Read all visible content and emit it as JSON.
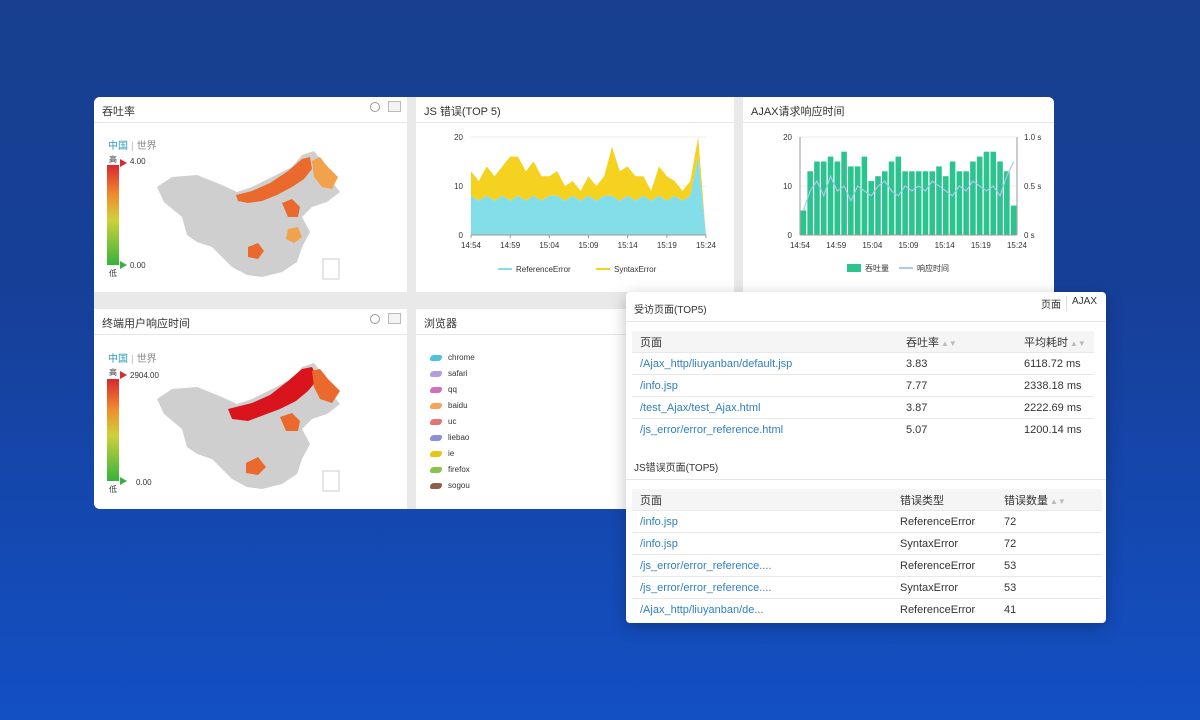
{
  "panels": {
    "throughput": {
      "title": "吞吐率",
      "tabs": [
        "中国",
        "世界"
      ],
      "scale_high_label": "高",
      "scale_low_label": "低",
      "max": "4.00",
      "min": "0.00"
    },
    "jsError": {
      "title": "JS 错误(TOP 5)"
    },
    "ajax": {
      "title": "AJAX请求响应时间"
    },
    "terminal": {
      "title": "终端用户响应时间",
      "tabs": [
        "中国",
        "世界"
      ],
      "scale_high_label": "高",
      "scale_low_label": "低",
      "max": "2904.00",
      "min": "0.00"
    },
    "browser": {
      "title": "浏览器",
      "items": [
        {
          "label": "chrome",
          "color": "#4fc3d9"
        },
        {
          "label": "safari",
          "color": "#b39ddb"
        },
        {
          "label": "qq",
          "color": "#d16fb8"
        },
        {
          "label": "baidu",
          "color": "#f5a35c"
        },
        {
          "label": "uc",
          "color": "#e57373"
        },
        {
          "label": "liebao",
          "color": "#8c8fd6"
        },
        {
          "label": "ie",
          "color": "#e6c619"
        },
        {
          "label": "firefox",
          "color": "#8bc34a"
        },
        {
          "label": "sogou",
          "color": "#8d5e4e"
        }
      ]
    }
  },
  "chart_data": [
    {
      "type": "area",
      "title": "JS 错误(TOP 5)",
      "x": [
        "14:54",
        "14:55",
        "14:56",
        "14:57",
        "14:58",
        "14:59",
        "15:00",
        "15:01",
        "15:02",
        "15:03",
        "15:04",
        "15:05",
        "15:06",
        "15:07",
        "15:08",
        "15:09",
        "15:10",
        "15:11",
        "15:12",
        "15:13",
        "15:14",
        "15:15",
        "15:16",
        "15:17",
        "15:18",
        "15:19",
        "15:20",
        "15:21",
        "15:22",
        "15:23",
        "15:24"
      ],
      "xticks": [
        "14:54",
        "14:59",
        "15:04",
        "15:09",
        "15:14",
        "15:19",
        "15:24"
      ],
      "yticks": [
        0,
        10,
        20
      ],
      "ylim": [
        0,
        20
      ],
      "series": [
        {
          "name": "ReferenceError",
          "color": "#84dee9",
          "values": [
            8,
            7,
            8,
            7,
            8,
            7,
            8,
            7,
            8,
            7,
            8,
            8,
            7,
            8,
            7,
            8,
            7,
            8,
            8,
            7,
            8,
            7,
            8,
            7,
            8,
            7,
            8,
            7,
            8,
            16,
            0
          ]
        },
        {
          "name": "SyntaxError",
          "color": "#f4d21f",
          "values": [
            5,
            4,
            6,
            5,
            6,
            9,
            8,
            6,
            7,
            5,
            4,
            5,
            3,
            3,
            2,
            4,
            3,
            4,
            10,
            6,
            6,
            5,
            4,
            2,
            6,
            5,
            3,
            2,
            3,
            4,
            0
          ]
        }
      ]
    },
    {
      "type": "bar",
      "title": "AJAX请求响应时间",
      "xticks": [
        "14:54",
        "14:59",
        "15:04",
        "15:09",
        "15:14",
        "15:19",
        "15:24"
      ],
      "yticks": [
        0,
        10,
        20
      ],
      "ylim": [
        0,
        20
      ],
      "y2ticks": [
        "0 s",
        "0.5 s",
        "1.0 s"
      ],
      "y2lim": [
        0,
        1.0
      ],
      "series": [
        {
          "name": "吞吐量",
          "color": "#2bc48f",
          "values": [
            5,
            13,
            15,
            15,
            16,
            15,
            17,
            14,
            14,
            16,
            11,
            12,
            13,
            15,
            16,
            13,
            13,
            13,
            13,
            13,
            14,
            12,
            15,
            13,
            13,
            15,
            16,
            17,
            17,
            15,
            13,
            6
          ]
        },
        {
          "name": "响应时间",
          "color": "#a9c9ef",
          "values": [
            0.25,
            0.45,
            0.55,
            0.4,
            0.6,
            0.45,
            0.5,
            0.35,
            0.5,
            0.45,
            0.4,
            0.5,
            0.55,
            0.45,
            0.4,
            0.5,
            0.45,
            0.5,
            0.45,
            0.55,
            0.5,
            0.45,
            0.4,
            0.5,
            0.45,
            0.55,
            0.5,
            0.45,
            0.5,
            0.4,
            0.6,
            0.75
          ]
        }
      ]
    }
  ],
  "card": {
    "title1": "受访页面(TOP5)",
    "tabs": [
      "页面",
      "AJAX"
    ],
    "table1": {
      "headers": [
        "页面",
        "吞吐率",
        "平均耗时"
      ],
      "rows": [
        [
          "/Ajax_http/liuyanban/default.jsp",
          "3.83",
          "6118.72 ms"
        ],
        [
          "/info.jsp",
          "7.77",
          "2338.18 ms"
        ],
        [
          "/test_Ajax/test_Ajax.html",
          "3.87",
          "2222.69 ms"
        ],
        [
          "/js_error/error_reference.html",
          "5.07",
          "1200.14 ms"
        ]
      ]
    },
    "title2": "JS错误页面(TOP5)",
    "table2": {
      "headers": [
        "页面",
        "错误类型",
        "错误数量"
      ],
      "rows": [
        [
          "/info.jsp",
          "ReferenceError",
          "72"
        ],
        [
          "/info.jsp",
          "SyntaxError",
          "72"
        ],
        [
          "/js_error/error_reference....",
          "ReferenceError",
          "53"
        ],
        [
          "/js_error/error_reference....",
          "SyntaxError",
          "53"
        ],
        [
          "/Ajax_http/liuyanban/de...",
          "ReferenceError",
          "41"
        ]
      ]
    }
  }
}
